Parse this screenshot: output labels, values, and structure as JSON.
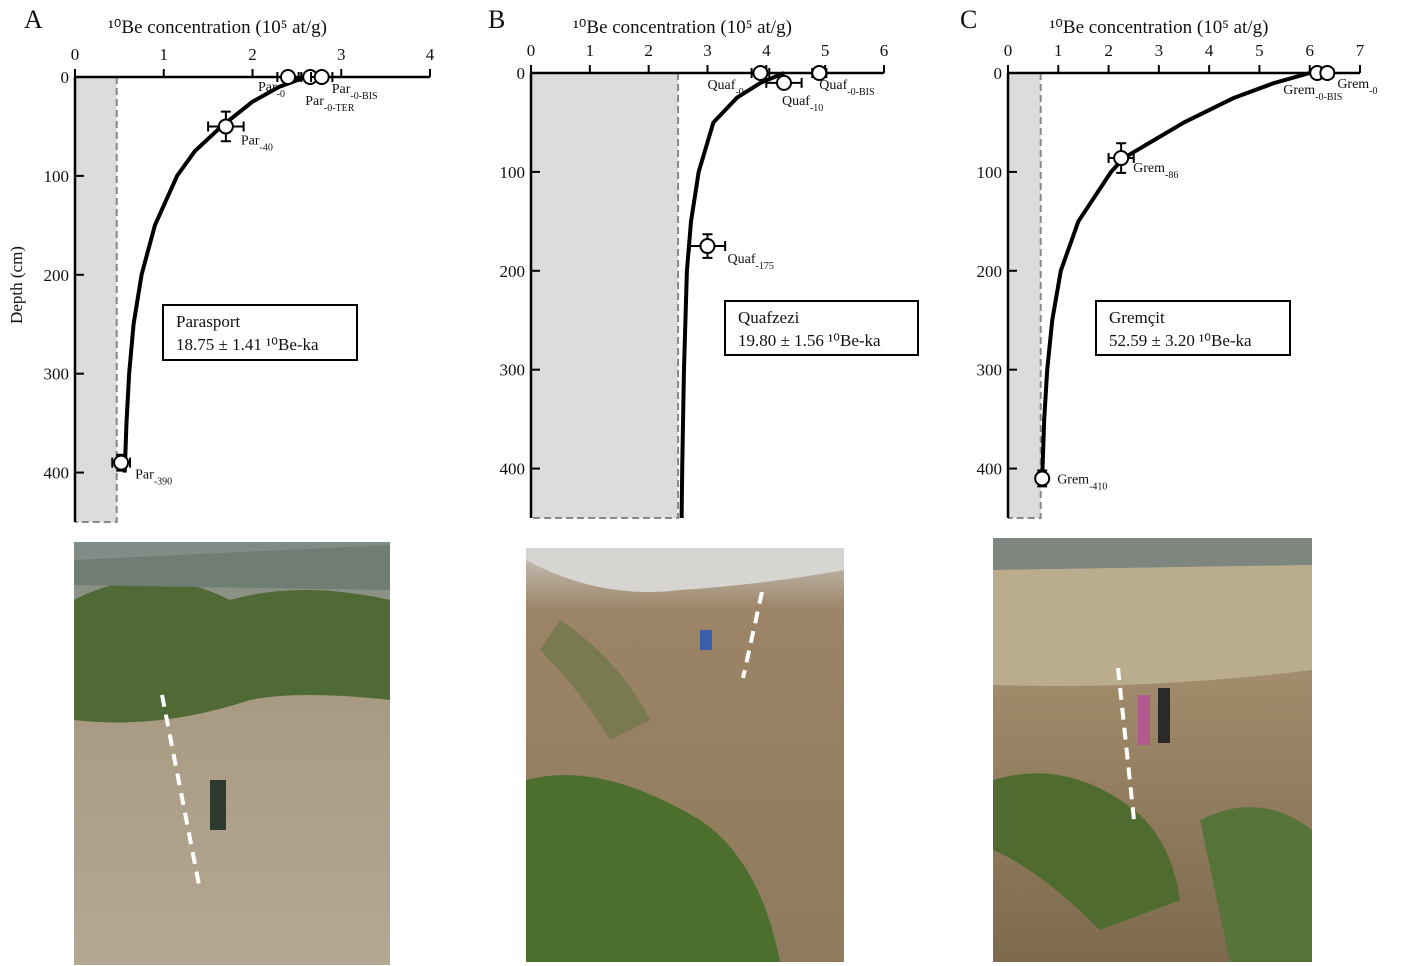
{
  "chart_data": [
    {
      "type": "scatter",
      "panel": "A",
      "xlabel": "¹⁰Be concentration (10⁵ at/g)",
      "ylabel": "Depth (cm)",
      "xlim": [
        0,
        4
      ],
      "xticks": [
        0,
        1,
        2,
        3,
        4
      ],
      "ylim": [
        0,
        450
      ],
      "yticks": [
        0,
        100,
        200,
        300,
        400
      ],
      "y_inverted": true,
      "site": "Parasport",
      "age": "18.75 ± 1.41 ¹⁰Be-ka",
      "inherited_concentration": 0.47,
      "points": [
        {
          "name": "Par",
          "sub": "-0",
          "x": 2.4,
          "depth": 0,
          "xerr": 0.12
        },
        {
          "name": "Par",
          "sub": "-0-TER",
          "x": 2.65,
          "depth": 0,
          "xerr": 0.1
        },
        {
          "name": "Par",
          "sub": "-0-BIS",
          "x": 2.78,
          "depth": 0,
          "xerr": 0.12
        },
        {
          "name": "Par",
          "sub": "-40",
          "x": 1.7,
          "depth": 50,
          "xerr": 0.2,
          "depth_err": 15
        },
        {
          "name": "Par",
          "sub": "-390",
          "x": 0.52,
          "depth": 390,
          "xerr": 0.1,
          "depth_err": 8
        }
      ],
      "curve": {
        "x": [
          2.6,
          2.3,
          2.0,
          1.65,
          1.35,
          1.15,
          0.9,
          0.75,
          0.66,
          0.61,
          0.58,
          0.56
        ],
        "depth": [
          0,
          10,
          25,
          50,
          75,
          100,
          150,
          200,
          250,
          300,
          350,
          400
        ]
      }
    },
    {
      "type": "scatter",
      "panel": "B",
      "xlabel": "¹⁰Be concentration (10⁵ at/g)",
      "xlim": [
        0,
        6
      ],
      "xticks": [
        0,
        1,
        2,
        3,
        4,
        5,
        6
      ],
      "ylim": [
        0,
        450
      ],
      "yticks": [
        0,
        100,
        200,
        300,
        400
      ],
      "y_inverted": true,
      "site": "Quafzezi",
      "age": "19.80 ± 1.56 ¹⁰Be-ka",
      "inherited_concentration": 2.5,
      "points": [
        {
          "name": "Quaf",
          "sub": "-0",
          "x": 3.9,
          "depth": 0,
          "xerr": 0.15
        },
        {
          "name": "Quaf",
          "sub": "-10",
          "x": 4.3,
          "depth": 10,
          "xerr": 0.3,
          "depth_err": 5
        },
        {
          "name": "Quaf",
          "sub": "-0-BIS",
          "x": 4.9,
          "depth": 0,
          "xerr": 0.12
        },
        {
          "name": "Quaf",
          "sub": "-175",
          "x": 3.0,
          "depth": 175,
          "xerr": 0.3,
          "depth_err": 12
        }
      ],
      "curve": {
        "x": [
          4.3,
          3.9,
          3.5,
          3.1,
          2.85,
          2.72,
          2.65,
          2.6,
          2.57,
          2.56
        ],
        "depth": [
          0,
          10,
          25,
          50,
          100,
          150,
          200,
          300,
          400,
          450
        ]
      }
    },
    {
      "type": "scatter",
      "panel": "C",
      "xlabel": "¹⁰Be concentration (10⁵ at/g)",
      "xlim": [
        0,
        7
      ],
      "xticks": [
        0,
        1,
        2,
        3,
        4,
        5,
        6,
        7
      ],
      "ylim": [
        0,
        450
      ],
      "yticks": [
        0,
        100,
        200,
        300,
        400
      ],
      "y_inverted": true,
      "site": "Gremçit",
      "age": "52.59 ± 3.20 ¹⁰Be-ka",
      "inherited_concentration": 0.65,
      "points": [
        {
          "name": "Grem",
          "sub": "-0-BIS",
          "x": 6.15,
          "depth": 0,
          "xerr": 0.1
        },
        {
          "name": "Grem",
          "sub": "-0",
          "x": 6.35,
          "depth": 0,
          "xerr": 0.12
        },
        {
          "name": "Grem",
          "sub": "-86",
          "x": 2.25,
          "depth": 86,
          "xerr": 0.25,
          "depth_err": 15
        },
        {
          "name": "Grem",
          "sub": "-410",
          "x": 0.68,
          "depth": 410,
          "xerr": 0.1,
          "depth_err": 8
        }
      ],
      "curve": {
        "x": [
          6.0,
          5.3,
          4.5,
          3.5,
          2.3,
          2.05,
          1.4,
          1.05,
          0.88,
          0.78,
          0.72,
          0.68
        ],
        "depth": [
          0,
          10,
          25,
          50,
          86,
          100,
          150,
          200,
          250,
          300,
          350,
          410
        ]
      }
    }
  ]
}
